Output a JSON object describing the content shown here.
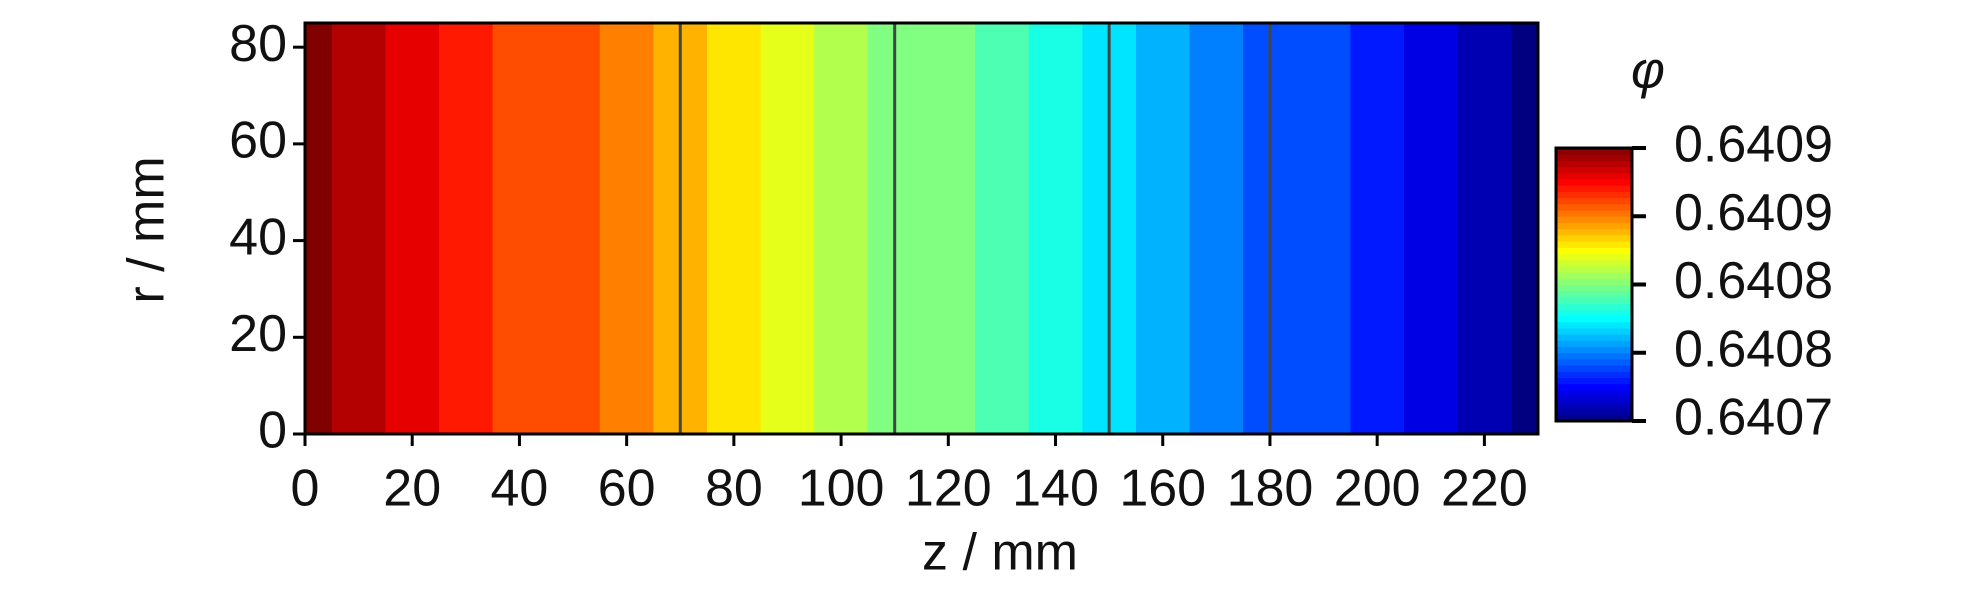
{
  "chart_data": {
    "type": "contour",
    "xlabel": "z / mm",
    "ylabel": "r / mm",
    "colorbar_label": "φ",
    "x": [
      0,
      10,
      20,
      30,
      40,
      50,
      60,
      70,
      80,
      90,
      100,
      110,
      120,
      130,
      140,
      150,
      160,
      170,
      180,
      190,
      200,
      210,
      220,
      230
    ],
    "values": [
      0.6409,
      0.64089,
      0.64088,
      0.64087,
      0.64086,
      0.64086,
      0.64085,
      0.64084,
      0.64083,
      0.64082,
      0.64081,
      0.6408,
      0.6408,
      0.64079,
      0.64078,
      0.64077,
      0.64076,
      0.64075,
      0.64074,
      0.64074,
      0.64073,
      0.64072,
      0.64071,
      0.6407
    ],
    "contour_levels": [
      0.64084,
      0.6408,
      0.64077,
      0.64074
    ],
    "xlim": [
      0,
      230
    ],
    "xticks": [
      0,
      20,
      40,
      60,
      80,
      100,
      120,
      140,
      160,
      180,
      200,
      220
    ],
    "ylim": [
      0,
      85
    ],
    "yticks": [
      0,
      20,
      40,
      60,
      80
    ],
    "clim": [
      0.6407,
      0.6409
    ],
    "cticks": [
      {
        "value": 0.6407,
        "label": "0.6407"
      },
      {
        "value": 0.64075,
        "label": "0.6408"
      },
      {
        "value": 0.6408,
        "label": "0.6408"
      },
      {
        "value": 0.64085,
        "label": "0.6409"
      },
      {
        "value": 0.6409,
        "label": "0.6409"
      }
    ],
    "colormap": "jet"
  }
}
